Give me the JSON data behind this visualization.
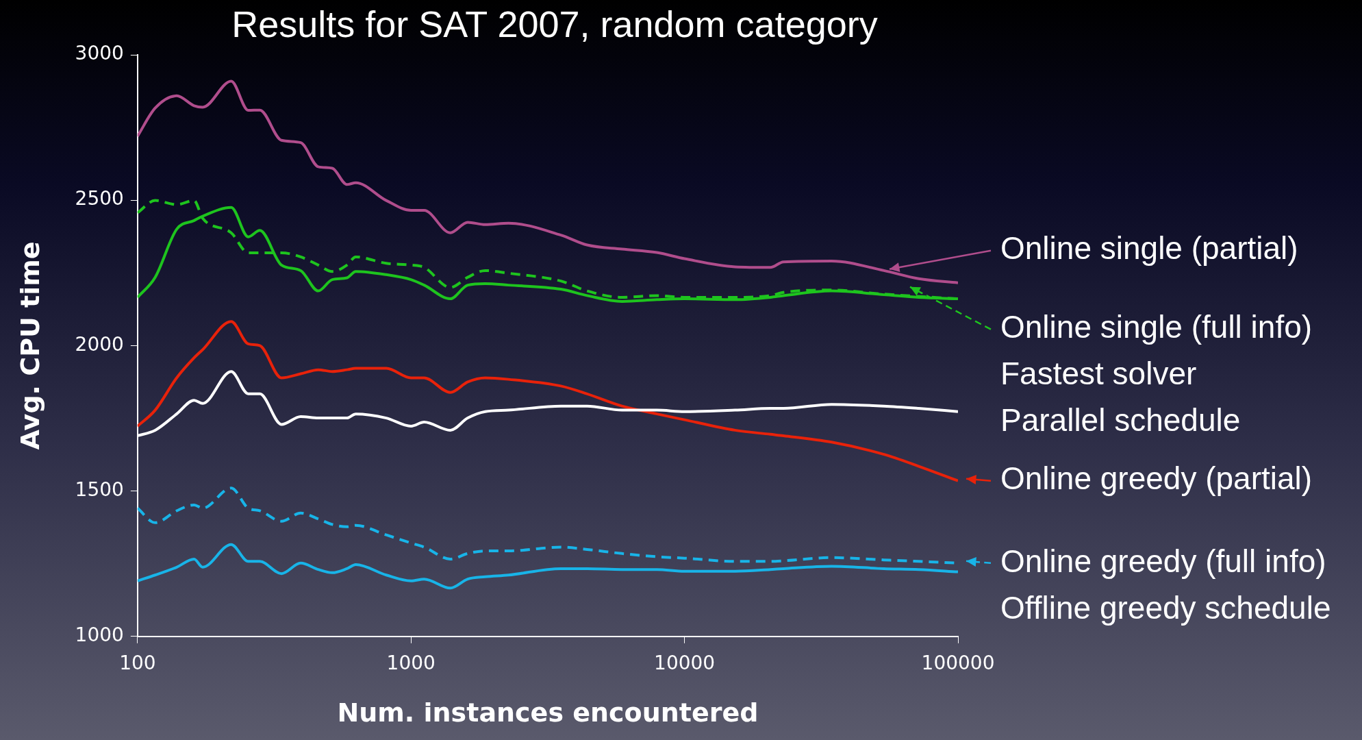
{
  "chart_data": {
    "type": "line",
    "title": "Results for SAT 2007, random category",
    "xlabel": "Num. instances encountered",
    "ylabel": "Avg. CPU time",
    "x": [
      100,
      116,
      139,
      161,
      173,
      220,
      254,
      280,
      336,
      395,
      458,
      515,
      583,
      628,
      812,
      1000,
      1117,
      1392,
      1612,
      1867,
      2273,
      3532,
      4404,
      5907,
      7925,
      10000,
      15300,
      20600,
      23000,
      34500,
      53600,
      71900,
      100000
    ],
    "series": [
      {
        "name": "Online single (partial)",
        "color": "#b04d8c",
        "line_style": "solid",
        "values": [
          2720,
          2817,
          2859,
          2825,
          2820,
          2909,
          2809,
          2810,
          2706,
          2698,
          2615,
          2610,
          2554,
          2560,
          2499,
          2465,
          2465,
          2388,
          2424,
          2416,
          2421,
          2380,
          2346,
          2332,
          2320,
          2299,
          2271,
          2269,
          2288,
          2291,
          2258,
          2230,
          2216
        ]
      },
      {
        "name": "Online single (full info)",
        "color": "#1ec41e",
        "line_style": "dashed",
        "values": [
          2457,
          2499,
          2485,
          2499,
          2438,
          2388,
          2319,
          2319,
          2319,
          2305,
          2277,
          2255,
          2277,
          2305,
          2283,
          2277,
          2269,
          2200,
          2235,
          2258,
          2249,
          2222,
          2188,
          2166,
          2172,
          2166,
          2166,
          2172,
          2183,
          2191,
          2177,
          2169,
          2161
        ]
      },
      {
        "name": "Fastest solver",
        "color": "#1ec41e",
        "line_style": "solid",
        "values": [
          2166,
          2235,
          2400,
          2430,
          2445,
          2475,
          2374,
          2396,
          2277,
          2258,
          2188,
          2227,
          2233,
          2255,
          2244,
          2227,
          2208,
          2161,
          2208,
          2213,
          2208,
          2194,
          2172,
          2152,
          2158,
          2161,
          2158,
          2166,
          2172,
          2188,
          2175,
          2166,
          2161
        ]
      },
      {
        "name": "Parallel schedule",
        "color": "#ffffff",
        "line_style": "solid",
        "values": [
          1690,
          1709,
          1765,
          1812,
          1801,
          1911,
          1834,
          1834,
          1729,
          1756,
          1751,
          1751,
          1751,
          1765,
          1751,
          1723,
          1737,
          1709,
          1751,
          1773,
          1778,
          1792,
          1792,
          1778,
          1778,
          1773,
          1778,
          1784,
          1784,
          1798,
          1792,
          1784,
          1773
        ]
      },
      {
        "name": "Online greedy (partial)",
        "color": "#e8220a",
        "line_style": "solid",
        "values": [
          1723,
          1778,
          1889,
          1958,
          1986,
          2083,
          2006,
          2000,
          1889,
          1903,
          1917,
          1911,
          1917,
          1922,
          1922,
          1889,
          1889,
          1839,
          1875,
          1889,
          1884,
          1861,
          1834,
          1792,
          1765,
          1745,
          1709,
          1695,
          1690,
          1668,
          1626,
          1585,
          1535
        ]
      },
      {
        "name": "Online greedy (full info)",
        "color": "#18b4e8",
        "line_style": "dashed",
        "values": [
          1441,
          1391,
          1432,
          1452,
          1441,
          1510,
          1441,
          1432,
          1396,
          1424,
          1404,
          1385,
          1377,
          1382,
          1349,
          1321,
          1307,
          1266,
          1285,
          1294,
          1294,
          1307,
          1299,
          1285,
          1274,
          1269,
          1258,
          1258,
          1260,
          1271,
          1263,
          1258,
          1252
        ]
      },
      {
        "name": "Offline greedy schedule",
        "color": "#18b4e8",
        "line_style": "solid",
        "values": [
          1191,
          1211,
          1238,
          1266,
          1238,
          1316,
          1258,
          1258,
          1216,
          1252,
          1230,
          1219,
          1233,
          1247,
          1211,
          1191,
          1197,
          1166,
          1197,
          1205,
          1211,
          1233,
          1233,
          1230,
          1230,
          1224,
          1224,
          1230,
          1233,
          1241,
          1233,
          1230,
          1222
        ]
      }
    ],
    "log": "x",
    "xlim": [
      100,
      100000
    ],
    "xticks": [
      100,
      1000,
      10000,
      100000
    ],
    "ylim": [
      1000,
      3000
    ],
    "yticks": [
      1000,
      1500,
      2000,
      2500,
      3000
    ],
    "grid": false,
    "legend": "right",
    "marker": "none"
  }
}
